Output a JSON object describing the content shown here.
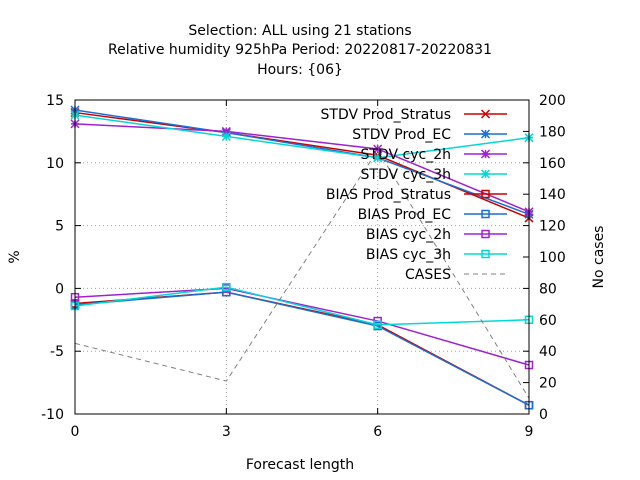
{
  "chart_data": {
    "type": "line",
    "title_lines": [
      "Selection: ALL using    21 stations",
      "Relative humidity 925hPa   Period: 20220817-20220831",
      "Hours: {06}"
    ],
    "xlabel": "Forecast length",
    "ylabel": "%",
    "y2label": "No cases",
    "x": [
      0,
      3,
      6,
      9
    ],
    "xlim": [
      0,
      9
    ],
    "ylim": [
      -10,
      15
    ],
    "y2lim": [
      0,
      200
    ],
    "xticks": [
      0,
      3,
      6,
      9
    ],
    "yticks": [
      -10,
      -5,
      0,
      5,
      10,
      15
    ],
    "y2ticks": [
      0,
      20,
      40,
      60,
      80,
      100,
      120,
      140,
      160,
      180,
      200
    ],
    "grid": true,
    "legend_position": "top-right",
    "series": [
      {
        "name": "STDV Prod_Stratus",
        "axis": "y",
        "marker": "x",
        "color": "#cc0000",
        "values": [
          14.0,
          12.4,
          10.6,
          5.6
        ]
      },
      {
        "name": "STDV Prod_EC",
        "axis": "y",
        "marker": "star",
        "color": "#1a6fd6",
        "values": [
          14.2,
          12.4,
          10.4,
          5.9
        ]
      },
      {
        "name": "STDV cyc_2h",
        "axis": "y",
        "marker": "star",
        "color": "#a020d0",
        "values": [
          13.1,
          12.5,
          11.1,
          6.1
        ]
      },
      {
        "name": "STDV cyc_3h",
        "axis": "y",
        "marker": "star",
        "color": "#00d8d8",
        "values": [
          13.8,
          12.1,
          10.4,
          12.0
        ]
      },
      {
        "name": "BIAS Prod_Stratus",
        "axis": "y",
        "marker": "square",
        "color": "#cc0000",
        "values": [
          -1.2,
          -0.3,
          -2.9,
          -9.3
        ]
      },
      {
        "name": "BIAS Prod_EC",
        "axis": "y",
        "marker": "square",
        "color": "#1a6fd6",
        "values": [
          -1.3,
          -0.3,
          -3.0,
          -9.3
        ]
      },
      {
        "name": "BIAS cyc_2h",
        "axis": "y",
        "marker": "square",
        "color": "#a020d0",
        "values": [
          -0.7,
          0.0,
          -2.6,
          -6.1
        ]
      },
      {
        "name": "BIAS cyc_3h",
        "axis": "y",
        "marker": "square",
        "color": "#00d8d8",
        "values": [
          -1.4,
          0.1,
          -2.9,
          -2.5
        ]
      },
      {
        "name": "CASES",
        "axis": "y2",
        "marker": "none",
        "color": "#808080",
        "dashed": true,
        "values": [
          45,
          21,
          168,
          10
        ]
      }
    ]
  }
}
